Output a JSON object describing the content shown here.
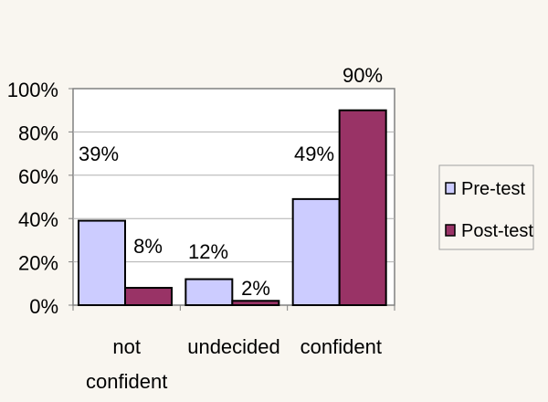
{
  "chart_data": {
    "type": "bar",
    "title": "",
    "xlabel": "",
    "ylabel": "",
    "categories": [
      [
        "not",
        "confident"
      ],
      [
        "undecided"
      ],
      [
        "confident"
      ]
    ],
    "series": [
      {
        "name": "Pre-test",
        "values": [
          39,
          12,
          49
        ],
        "labels": [
          "39%",
          "12%",
          "49%"
        ],
        "color": "#ccccff"
      },
      {
        "name": "Post-test",
        "values": [
          8,
          2,
          90
        ],
        "labels": [
          "8%",
          "2%",
          "90%"
        ],
        "color": "#993366"
      }
    ],
    "ylim": [
      0,
      100
    ],
    "yticks": [
      0,
      20,
      40,
      60,
      80,
      100
    ],
    "ytick_labels": [
      "0%",
      "20%",
      "40%",
      "60%",
      "80%",
      "100%"
    ],
    "grid": true,
    "legend_position": "right",
    "background_color": "#f9f6f0",
    "plot_background_color": "#ffffff"
  }
}
